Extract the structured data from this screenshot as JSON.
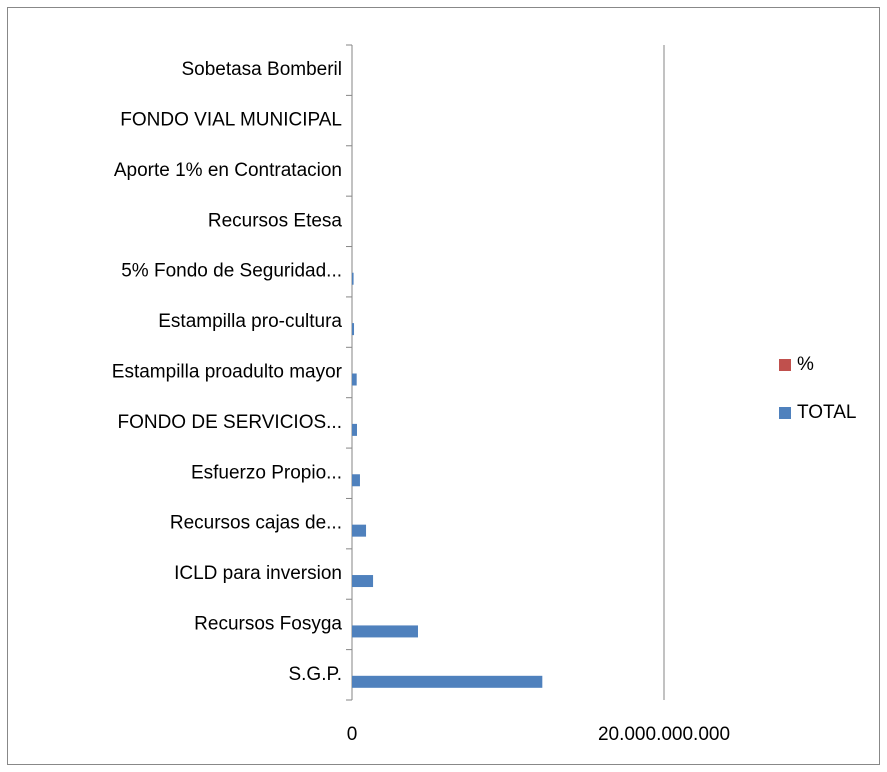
{
  "chart_data": {
    "type": "barh",
    "categories": [
      "S.G.P.",
      "Recursos Fosyga",
      "ICLD para inversion ",
      "Recursos cajas de...",
      "Esfuerzo Propio...",
      "FONDO DE  SERVICIOS...",
      "Estampilla proadulto mayor",
      "Estampilla pro-cultura",
      "5% Fondo de Seguridad...",
      "Recursos Etesa ",
      "Aporte 1% en Contratacion",
      "FONDO VIAL MUNICIPAL",
      "Sobetasa Bomberil"
    ],
    "series": [
      {
        "name": "TOTAL",
        "color": "#4f81bd",
        "values": [
          12200000000,
          4230000000,
          1350000000,
          900000000,
          510000000,
          320000000,
          300000000,
          130000000,
          100000000,
          0,
          0,
          0,
          0
        ]
      },
      {
        "name": "%",
        "color": "#c0504d",
        "values": [
          61,
          21,
          6.7,
          4.5,
          2.5,
          1.6,
          1.5,
          0.7,
          0.5,
          0,
          0,
          0,
          0
        ]
      }
    ],
    "xlim": [
      0,
      20000000000
    ],
    "xticks": [
      0,
      {
        "value": 20000000000,
        "label": "20.000.000.000"
      }
    ],
    "grid": true,
    "legend": "right"
  }
}
